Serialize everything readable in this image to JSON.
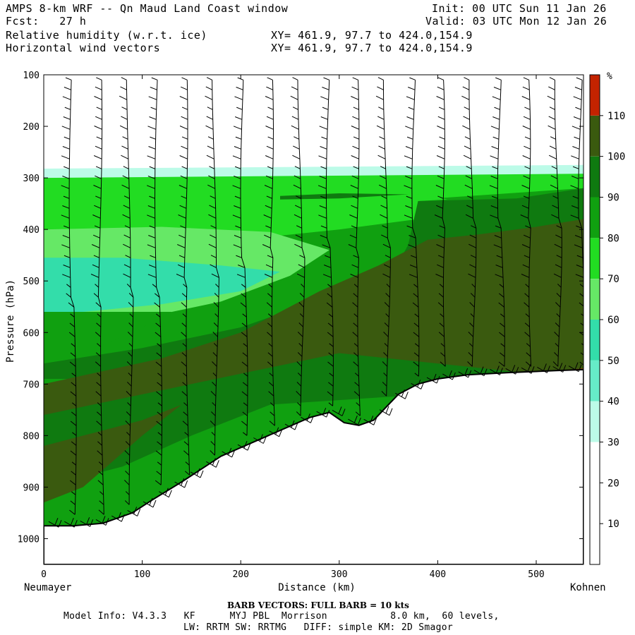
{
  "header": {
    "title": "AMPS 8-km WRF -- Qn Maud Land Coast window",
    "init": "Init: 00 UTC Sun 11 Jan 26",
    "fcst": "Fcst:   27 h",
    "valid": "Valid: 03 UTC Mon 12 Jan 26",
    "field1": "Relative humidity (w.r.t. ice)",
    "field1_xy": "XY= 461.9, 97.7 to 424.0,154.9",
    "field2": "Horizontal wind vectors",
    "field2_xy": "XY= 461.9, 97.7 to 424.0,154.9"
  },
  "footer": {
    "barb_note": "BARB VECTORS:  FULL BARB = 10 kts",
    "model_line1": "Model Info: V4.3.3   KF      MYJ PBL  Morrison           8.0 km,  60 levels,",
    "model_line2": "LW: RRTM SW: RRTMG   DIFF: simple KM: 2D Smagor"
  },
  "colors": {
    "rh_110": "#c42300",
    "rh_100": "#3a5a0f",
    "rh_90": "#0f7a10",
    "rh_80": "#10a010",
    "rh_70": "#22dc22",
    "rh_60": "#66e866",
    "rh_50": "#33ddaa",
    "rh_40": "#66ecc8",
    "rh_30": "#bcfbe8",
    "rh_low": "#ffffff",
    "terrain_line": "#000000",
    "barb": "#000000"
  },
  "chart_data": {
    "type": "cross-section",
    "title": "Relative humidity (w.r.t. ice) and horizontal wind vectors",
    "xlabel": "Distance (km)",
    "ylabel": "Pressure (hPa)",
    "xlim": [
      0,
      548
    ],
    "ylim": [
      1050,
      100
    ],
    "x_ticks": [
      0,
      100,
      200,
      300,
      400,
      500
    ],
    "y_ticks": [
      100,
      200,
      300,
      400,
      500,
      600,
      700,
      800,
      900,
      1000
    ],
    "left_endpoint": "Neumayer",
    "right_endpoint": "Kohnen",
    "colorbar": {
      "unit": "%",
      "levels": [
        10,
        20,
        30,
        40,
        50,
        60,
        70,
        80,
        90,
        100,
        110
      ]
    },
    "surface_pressure": {
      "distance_km": [
        0,
        30,
        60,
        90,
        110,
        140,
        180,
        210,
        240,
        270,
        290,
        305,
        320,
        335,
        350,
        360,
        380,
        400,
        430,
        470,
        520,
        548
      ],
      "pressure_hPa": [
        975,
        975,
        970,
        950,
        925,
        890,
        840,
        815,
        790,
        765,
        755,
        775,
        780,
        770,
        740,
        720,
        700,
        690,
        682,
        678,
        674,
        672
      ]
    },
    "moist_layer_top_hPa": 285,
    "barb_columns_km": [
      28,
      57,
      86,
      115,
      144,
      173,
      202,
      231,
      260,
      289,
      318,
      347,
      376,
      405,
      434,
      463,
      492,
      521,
      545
    ]
  }
}
